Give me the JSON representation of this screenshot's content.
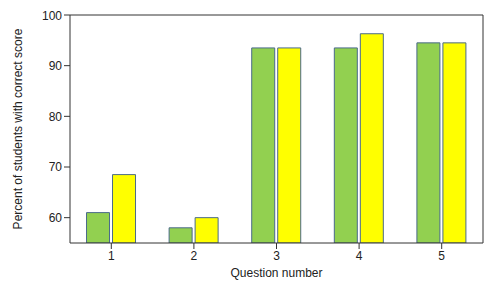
{
  "chart_data": {
    "type": "bar",
    "x_label": "Question number",
    "y_label": "Percent of students with correct score",
    "categories": [
      "1",
      "2",
      "3",
      "4",
      "5"
    ],
    "series": [
      {
        "color": "#92d050",
        "values": [
          61,
          58,
          93.5,
          93.5,
          94.5
        ]
      },
      {
        "color": "#ffff00",
        "values": [
          68.5,
          60,
          93.5,
          96.3,
          94.5
        ]
      }
    ],
    "ylim": [
      55,
      100
    ],
    "yticks": [
      60,
      70,
      80,
      90,
      100
    ],
    "grid": false
  }
}
